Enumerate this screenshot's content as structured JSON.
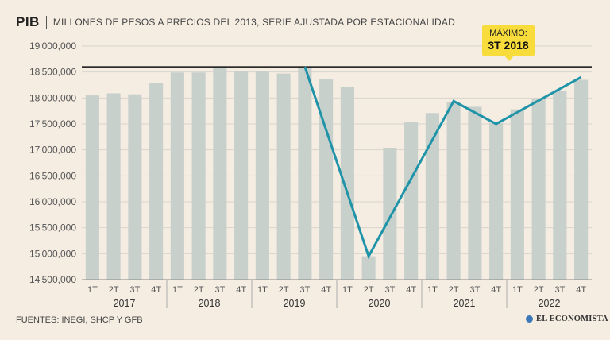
{
  "header": {
    "title": "PIB",
    "subtitle": "MILLONES DE PESOS A PRECIOS DEL 2013, SERIE AJUSTADA POR ESTACIONALIDAD"
  },
  "callout": {
    "line1": "MÁXIMO:",
    "line2": "3T 2018"
  },
  "footer": {
    "source": "FUENTES: INEGI, SHCP Y GFB"
  },
  "brand": {
    "name": "EL ECONOMISTA"
  },
  "colors": {
    "background": "#f5ede2",
    "bars": "#c8d0cc",
    "line": "#1f93a8",
    "callout": "#f7dc3b",
    "reference_line": "#111111"
  },
  "chart_data": {
    "type": "bar",
    "title": "PIB",
    "subtitle": "MILLONES DE PESOS A PRECIOS DEL 2013, SERIE AJUSTADA POR ESTACIONALIDAD",
    "ylim": [
      14500000,
      19000000
    ],
    "yticks": [
      19000000,
      18500000,
      18000000,
      17500000,
      17000000,
      16500000,
      16000000,
      15500000,
      15000000,
      14500000
    ],
    "ytick_labels": [
      "19'000,000",
      "18'500,000",
      "18'000,000",
      "17'500,000",
      "17'000,000",
      "16'500,000",
      "16'000,000",
      "15'500,000",
      "15'000,000",
      "14'500,000"
    ],
    "categories": [
      "1T",
      "2T",
      "3T",
      "4T",
      "1T",
      "2T",
      "3T",
      "4T",
      "1T",
      "2T",
      "3T",
      "4T",
      "1T",
      "2T",
      "3T",
      "4T",
      "1T",
      "2T",
      "3T",
      "4T",
      "1T",
      "2T",
      "3T",
      "4T"
    ],
    "groups": [
      "2017",
      "2018",
      "2019",
      "2020",
      "2021",
      "2022"
    ],
    "values": [
      18050000,
      18090000,
      18070000,
      18280000,
      18490000,
      18490000,
      18600000,
      18520000,
      18510000,
      18470000,
      18600000,
      18370000,
      18220000,
      14950000,
      17040000,
      17540000,
      17710000,
      17920000,
      17830000,
      17520000,
      17780000,
      17990000,
      18140000,
      18350000
    ],
    "line_points": [
      {
        "x": "3T 2019",
        "y": 18600000
      },
      {
        "x": "2T 2020",
        "y": 14950000
      },
      {
        "x": "2T 2021",
        "y": 17940000
      },
      {
        "x": "4T 2021",
        "y": 17500000
      },
      {
        "x": "4T 2022",
        "y": 18400000
      }
    ],
    "reference_line": {
      "y": 18600000
    },
    "grid": true
  }
}
